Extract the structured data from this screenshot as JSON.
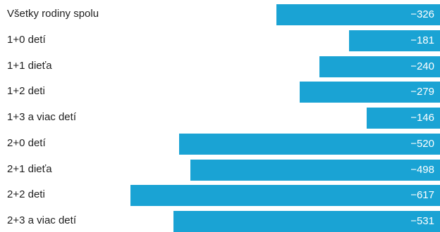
{
  "colors": {
    "bar": "#1aa3d4",
    "label": "#1f1f1f",
    "value_label": "#ffffff",
    "background": "#ffffff"
  },
  "chart_data": {
    "type": "bar",
    "orientation": "horizontal",
    "title": "",
    "xlabel": "",
    "ylabel": "",
    "grid": false,
    "legend": "none",
    "categories": [
      "Všetky rodiny spolu",
      "1+0 detí",
      "1+1 dieťa",
      "1+2 deti",
      "1+3 a viac detí",
      "2+0 detí",
      "2+1 dieťa",
      "2+2 deti",
      "2+3 a viac detí"
    ],
    "values": [
      -326,
      -181,
      -240,
      -279,
      -146,
      -520,
      -498,
      -617,
      -531
    ],
    "value_labels": [
      "−326",
      "−181",
      "−240",
      "−279",
      "−146",
      "−520",
      "−498",
      "−617",
      "−531"
    ],
    "xlim": [
      -617,
      0
    ]
  }
}
